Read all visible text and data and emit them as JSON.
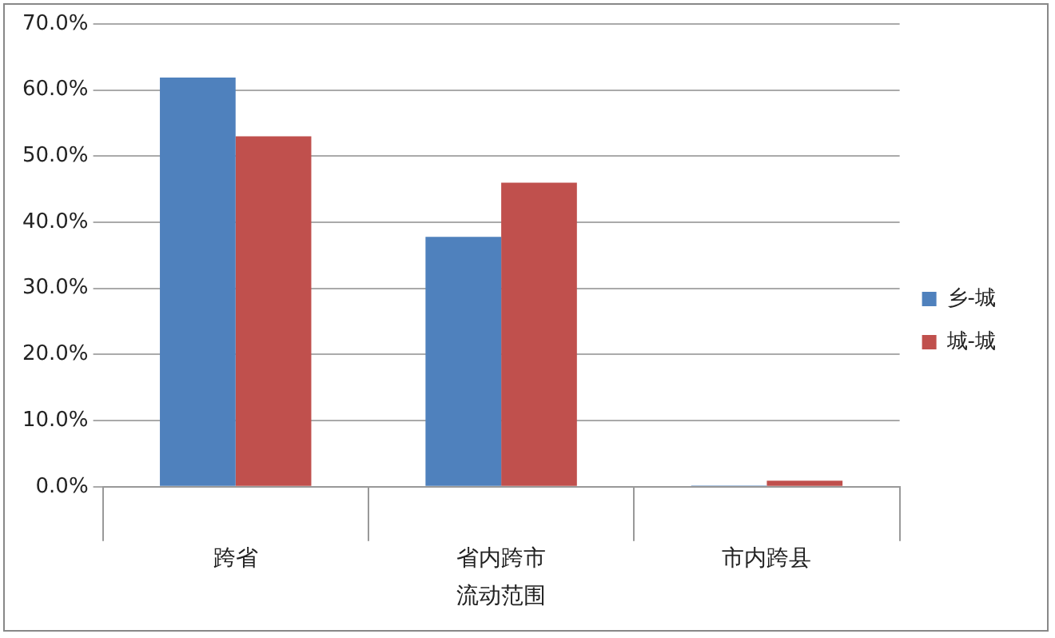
{
  "chart_data": {
    "type": "bar",
    "xlabel": "流动范围",
    "categories": [
      "跨省",
      "省内跨市",
      "市内跨县"
    ],
    "series": [
      {
        "name": "乡-城",
        "color": "#4f81bd",
        "values": [
          61.9,
          37.8,
          0.2
        ]
      },
      {
        "name": "城-城",
        "color": "#c0504d",
        "values": [
          53.0,
          46.0,
          0.9
        ]
      }
    ],
    "ylim": [
      0,
      70
    ],
    "yticks": [
      {
        "value": 0,
        "label": "0.0%"
      },
      {
        "value": 10,
        "label": "10.0%"
      },
      {
        "value": 20,
        "label": "20.0%"
      },
      {
        "value": 30,
        "label": "30.0%"
      },
      {
        "value": 40,
        "label": "40.0%"
      },
      {
        "value": 50,
        "label": "50.0%"
      },
      {
        "value": 60,
        "label": "60.0%"
      },
      {
        "value": 70,
        "label": "70.0%"
      }
    ],
    "grid": "y",
    "legend": "right"
  }
}
